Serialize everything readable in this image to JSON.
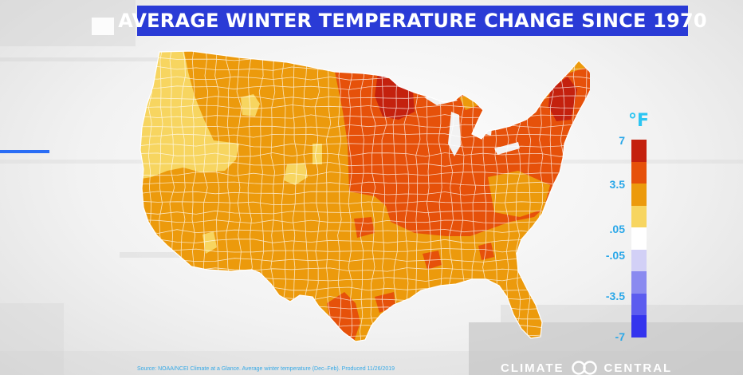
{
  "title": "AVERAGE WINTER TEMPERATURE CHANGE SINCE 1970",
  "legend": {
    "unit": "°F",
    "labels": [
      "7",
      "3.5",
      ".05",
      "-.05",
      "-3.5",
      "-7"
    ],
    "swatches": [
      {
        "color": "#c4210e"
      },
      {
        "color": "#e6510a"
      },
      {
        "color": "#ec9a0c"
      },
      {
        "color": "#f7d560"
      },
      {
        "color": "#ffffff"
      },
      {
        "color": "#d2d0f6"
      },
      {
        "color": "#8a8af0"
      },
      {
        "color": "#5c5cef"
      },
      {
        "color": "#3434ee"
      }
    ]
  },
  "map": {
    "colors": {
      "dark_red": "#c4210e",
      "red_orange": "#e6510a",
      "orange": "#ec9a0c",
      "yellow": "#f7d560",
      "border": "#ffffff"
    }
  },
  "source": "Source: NOAA/NCEI Climate at a Glance. Average winter temperature (Dec–Feb). Produced 11/26/2019",
  "brand": {
    "left": "CLIMATE",
    "right": "CENTRAL"
  }
}
